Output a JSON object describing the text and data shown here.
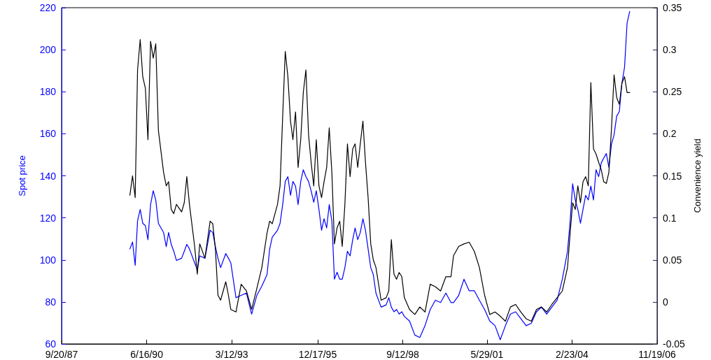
{
  "chart_data": {
    "type": "line",
    "ylabel": "Spot price",
    "y2label": "Convenience yield",
    "x": [
      "1989-12",
      "1990-01",
      "1990-02",
      "1990-03",
      "1990-04",
      "1990-05",
      "1990-06",
      "1990-07",
      "1990-08",
      "1990-09",
      "1990-10",
      "1990-11",
      "1991-01",
      "1991-02",
      "1991-03",
      "1991-04",
      "1991-05",
      "1991-06",
      "1991-08",
      "1991-09",
      "1991-10",
      "1991-11",
      "1992-01",
      "1992-02",
      "1992-03",
      "1992-05",
      "1992-07",
      "1992-08",
      "1992-09",
      "1992-10",
      "1992-11",
      "1993-01",
      "1993-02",
      "1993-03",
      "1993-05",
      "1993-07",
      "1993-09",
      "1993-11",
      "1994-01",
      "1994-03",
      "1994-05",
      "1994-06",
      "1994-07",
      "1994-09",
      "1994-10",
      "1994-11",
      "1994-12",
      "1995-01",
      "1995-02",
      "1995-03",
      "1995-04",
      "1995-05",
      "1995-06",
      "1995-07",
      "1995-08",
      "1995-09",
      "1995-10",
      "1995-11",
      "1995-12",
      "1996-01",
      "1996-02",
      "1996-03",
      "1996-04",
      "1996-05",
      "1996-06",
      "1996-07",
      "1996-08",
      "1996-09",
      "1996-10",
      "1996-11",
      "1996-12",
      "1997-01",
      "1997-02",
      "1997-03",
      "1997-04",
      "1997-05",
      "1997-06",
      "1997-07",
      "1997-08",
      "1997-09",
      "1997-10",
      "1997-11",
      "1998-01",
      "1998-03",
      "1998-04",
      "1998-05",
      "1998-06",
      "1998-07",
      "1998-08",
      "1998-09",
      "1998-10",
      "1998-12",
      "1999-02",
      "1999-04",
      "1999-06",
      "1999-08",
      "1999-10",
      "1999-12",
      "2000-02",
      "2000-04",
      "2000-05",
      "2000-07",
      "2000-09",
      "2000-11",
      "2001-01",
      "2001-03",
      "2001-05",
      "2001-07",
      "2001-09",
      "2001-11",
      "2002-01",
      "2002-03",
      "2002-05",
      "2002-07",
      "2002-09",
      "2002-11",
      "2003-01",
      "2003-03",
      "2003-05",
      "2003-07",
      "2003-09",
      "2003-11",
      "2004-01",
      "2004-02",
      "2004-03",
      "2004-04",
      "2004-05",
      "2004-06",
      "2004-07",
      "2004-08",
      "2004-09",
      "2004-10",
      "2004-11",
      "2004-12",
      "2005-01",
      "2005-02",
      "2005-03",
      "2005-04",
      "2005-05",
      "2005-06",
      "2005-07",
      "2005-08",
      "2005-09",
      "2005-10",
      "2005-11",
      "2005-12",
      "2006-01"
    ],
    "series": [
      {
        "color": "#0000ff",
        "values": [
          105.2,
          108.5,
          97.4,
          118.5,
          124,
          117.4,
          116.3,
          109.6,
          126.3,
          132.9,
          128.5,
          117.4,
          113,
          106.3,
          113,
          107.4,
          104.1,
          99.7,
          100.8,
          104.1,
          107.4,
          105.2,
          98.6,
          95.3,
          101.9,
          100.8,
          114.1,
          113,
          106.3,
          100.8,
          96.3,
          103,
          100.8,
          98.6,
          82,
          83.1,
          84.2,
          74.2,
          83.1,
          87.5,
          93,
          105.2,
          110.8,
          114.1,
          117.4,
          126.3,
          137.3,
          139.6,
          130.7,
          137.3,
          135.1,
          126.3,
          137.3,
          142.9,
          139.6,
          137.3,
          132.9,
          127.4,
          132.9,
          124,
          114.1,
          119.6,
          115.2,
          126.3,
          118.5,
          90.8,
          94.1,
          90.8,
          90.8,
          96.3,
          104.1,
          101.9,
          109.6,
          115.2,
          109.6,
          113,
          119.6,
          114.1,
          105.2,
          96.3,
          93,
          84.2,
          77.5,
          78.6,
          82,
          77.5,
          75.3,
          76.4,
          74.2,
          75.3,
          73.1,
          70.9,
          64.2,
          63.1,
          68.7,
          76.4,
          80.8,
          79.7,
          84.2,
          79.7,
          79.7,
          83.1,
          90.8,
          85.3,
          85.3,
          80.8,
          76.4,
          70.9,
          68.7,
          62,
          68.7,
          74.2,
          75.3,
          72,
          68.7,
          69.8,
          75.3,
          77.5,
          74.2,
          77.5,
          80.8,
          90.8,
          104.1,
          118.5,
          136.2,
          128.5,
          124,
          117.4,
          124,
          130.7,
          128.5,
          135.1,
          128.5,
          142.9,
          139.6,
          146.2,
          148.4,
          150.6,
          144,
          155.1,
          159.5,
          168.4,
          170.6,
          183.9,
          191.6,
          212.7,
          218.2
        ]
      },
      {
        "color": "#000000",
        "axis": "y2",
        "values": [
          0.127,
          0.15,
          0.124,
          0.276,
          0.312,
          0.268,
          0.254,
          0.193,
          0.31,
          0.29,
          0.307,
          0.204,
          0.154,
          0.138,
          0.143,
          0.11,
          0.105,
          0.116,
          0.107,
          0.118,
          0.149,
          0.116,
          0.066,
          0.033,
          0.069,
          0.052,
          0.096,
          0.093,
          0.063,
          0.008,
          0.002,
          0.024,
          0.008,
          -0.009,
          -0.012,
          0.021,
          0.013,
          -0.009,
          0.016,
          0.041,
          0.082,
          0.096,
          0.093,
          0.116,
          0.138,
          0.221,
          0.298,
          0.268,
          0.215,
          0.193,
          0.226,
          0.16,
          0.193,
          0.249,
          0.276,
          0.199,
          0.166,
          0.138,
          0.193,
          0.138,
          0.124,
          0.143,
          0.16,
          0.207,
          0.154,
          0.069,
          0.088,
          0.096,
          0.066,
          0.116,
          0.188,
          0.149,
          0.182,
          0.188,
          0.16,
          0.188,
          0.215,
          0.166,
          0.124,
          0.069,
          0.05,
          0.041,
          0.002,
          0.005,
          0.013,
          0.074,
          0.033,
          0.027,
          0.035,
          0.03,
          0.005,
          -0.009,
          -0.015,
          -0.006,
          -0.012,
          0.021,
          0.018,
          0.013,
          0.03,
          0.03,
          0.055,
          0.066,
          0.069,
          0.071,
          0.06,
          0.041,
          0.008,
          -0.015,
          -0.012,
          -0.017,
          -0.023,
          -0.006,
          -0.003,
          -0.012,
          -0.02,
          -0.023,
          -0.009,
          -0.006,
          -0.012,
          -0.003,
          0.005,
          0.013,
          0.041,
          0.082,
          0.118,
          0.11,
          0.138,
          0.118,
          0.143,
          0.149,
          0.138,
          0.261,
          0.182,
          0.176,
          0.166,
          0.157,
          0.143,
          0.141,
          0.154,
          0.207,
          0.27,
          0.243,
          0.235,
          0.26,
          0.268,
          0.249,
          0.249
        ]
      }
    ],
    "xlim": [
      "1987-09-20",
      "2006-11-19"
    ],
    "xticks": [
      {
        "value": "1987-09-20",
        "label": "9/20/87"
      },
      {
        "value": "1990-06-16",
        "label": "6/16/90"
      },
      {
        "value": "1993-03-12",
        "label": "3/12/93"
      },
      {
        "value": "1995-12-17",
        "label": "12/17/95"
      },
      {
        "value": "1998-09-12",
        "label": "9/12/98"
      },
      {
        "value": "2001-05-29",
        "label": "5/29/01"
      },
      {
        "value": "2004-02-23",
        "label": "2/23/04"
      },
      {
        "value": "2006-11-19",
        "label": "11/19/06"
      }
    ],
    "ylim": [
      60,
      220
    ],
    "yticks": [
      60,
      80,
      100,
      120,
      140,
      160,
      180,
      200,
      220
    ],
    "y2lim": [
      -0.05,
      0.35
    ],
    "y2ticks": [
      -0.05,
      0,
      0.05,
      0.1,
      0.15,
      0.2,
      0.25,
      0.3,
      0.35
    ],
    "grid": false,
    "marker": "none",
    "line_style": "solid"
  }
}
